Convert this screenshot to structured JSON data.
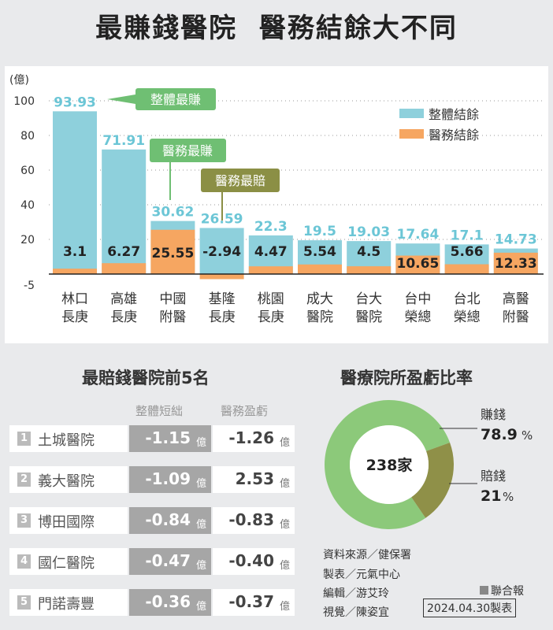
{
  "title": "最賺錢醫院  醫務結餘大不同",
  "chart_data": {
    "type": "bar",
    "ylabel": "(億)",
    "yticks": [
      100,
      80,
      60,
      40,
      20,
      -5
    ],
    "ylim": [
      -5,
      100
    ],
    "categories": [
      [
        "林口",
        "長庚"
      ],
      [
        "高雄",
        "長庚"
      ],
      [
        "中國",
        "附醫"
      ],
      [
        "基隆",
        "長庚"
      ],
      [
        "桃園",
        "長庚"
      ],
      [
        "成大",
        "醫院"
      ],
      [
        "台大",
        "醫院"
      ],
      [
        "台中",
        "榮總"
      ],
      [
        "台北",
        "榮總"
      ],
      [
        "高醫",
        "附醫"
      ]
    ],
    "series": [
      {
        "name": "整體結餘",
        "color": "#8ed0dc",
        "values": [
          93.93,
          71.91,
          30.62,
          26.59,
          22.3,
          19.5,
          19.03,
          17.64,
          17.1,
          14.73
        ],
        "labels": [
          "93.93",
          "71.91",
          "30.62",
          "26.59",
          "22.3",
          "19.5",
          "19.03",
          "17.64",
          "17.1",
          "14.73"
        ]
      },
      {
        "name": "醫務結餘",
        "color": "#f6a661",
        "values": [
          3.1,
          6.27,
          25.55,
          -2.94,
          4.47,
          5.54,
          4.5,
          10.65,
          5.66,
          12.33
        ],
        "labels": [
          "3.1",
          "6.27",
          "25.55",
          "-2.94",
          "4.47",
          "5.54",
          "4.5",
          "10.65",
          "5.66",
          "12.33"
        ]
      }
    ],
    "annotations": [
      {
        "text": "整體最賺",
        "category_index": 0,
        "color": "#6fbf73"
      },
      {
        "text": "醫務最賺",
        "category_index": 2,
        "color": "#6fbf73"
      },
      {
        "text": "醫務最賠",
        "category_index": 3,
        "color": "#8b8f45"
      }
    ],
    "legend_position": "top-right"
  },
  "loss_table": {
    "title": "最賠錢醫院前5名",
    "col_total": "整體短絀",
    "col_medical": "醫務盈虧",
    "unit": "億",
    "rows": [
      {
        "rank": "1",
        "name": "土城醫院",
        "total": "-1.15",
        "medical": "-1.26"
      },
      {
        "rank": "2",
        "name": "義大醫院",
        "total": "-1.09",
        "medical": "2.53"
      },
      {
        "rank": "3",
        "name": "博田國際",
        "total": "-0.84",
        "medical": "-0.83"
      },
      {
        "rank": "4",
        "name": "國仁醫院",
        "total": "-0.47",
        "medical": "-0.40"
      },
      {
        "rank": "5",
        "name": "門諾壽豐",
        "total": "-0.36",
        "medical": "-0.37"
      }
    ]
  },
  "donut": {
    "title": "醫療院所盈虧比率",
    "center_label": "238家",
    "segments": [
      {
        "label": "賺錢",
        "value": 78.9,
        "display": "78.9",
        "unit": "%",
        "color": "#8cc97a"
      },
      {
        "label": "賠錢",
        "value": 21,
        "display": "21",
        "unit": "%",
        "color": "#8f9048"
      }
    ]
  },
  "credits": {
    "source": "資料來源／健保署",
    "made_by": "製表／元氣中心",
    "editor": "編輯／游艾玲",
    "visual": "視覺／陳姿宜",
    "publisher": "聯合報",
    "date": "2024.04.30製表"
  }
}
